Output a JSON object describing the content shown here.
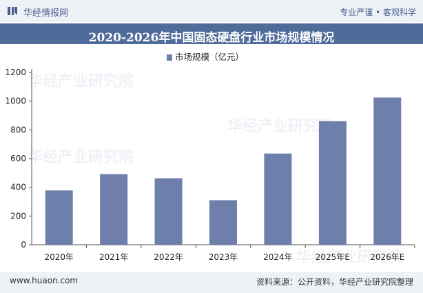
{
  "header": {
    "brand": "华经情报网",
    "tagline": "专业严谨 • 客观科学"
  },
  "chart_data": {
    "type": "bar",
    "title": "2020-2026年中国固态硬盘行业市场规模情况",
    "categories": [
      "2020年",
      "2021年",
      "2022年",
      "2023年",
      "2024年",
      "2025年E",
      "2026年E"
    ],
    "series": [
      {
        "name": "市场规模（亿元）",
        "values": [
          378,
          492,
          463,
          310,
          635,
          860,
          1025
        ],
        "color": "#6f7fab"
      }
    ],
    "yticks": [
      "0",
      "200",
      "400",
      "600",
      "800",
      "1000",
      "1200"
    ],
    "ylim": [
      0,
      1200
    ],
    "grid": false,
    "legend": "top-center"
  },
  "footer": {
    "site": "www.huaon.com",
    "source": "资料来源：公开资料，华经产业研究院整理"
  },
  "watermark": {
    "text": "华经产业研究院",
    "url": "www.huaon.com"
  }
}
